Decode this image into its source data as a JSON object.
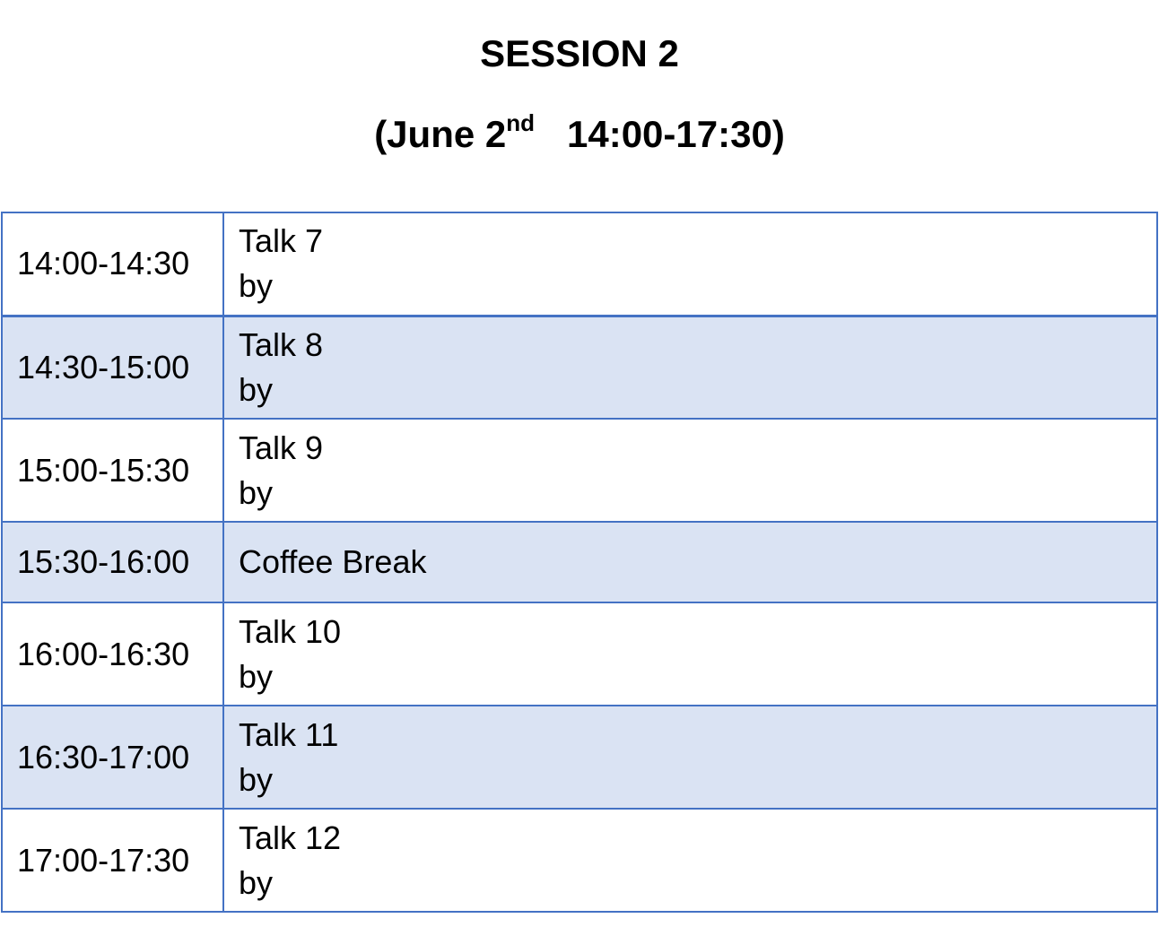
{
  "header": {
    "title": "SESSION 2",
    "subtitle_prefix": "(June 2",
    "subtitle_sup": "nd",
    "subtitle_time": "14:00-17:30)"
  },
  "schedule": {
    "rows": [
      {
        "time": "14:00-14:30",
        "title": "Talk 7",
        "by": "by"
      },
      {
        "time": "14:30-15:00",
        "title": "Talk 8",
        "by": "by"
      },
      {
        "time": "15:00-15:30",
        "title": "Talk 9",
        "by": "by"
      },
      {
        "time": "15:30-16:00",
        "title": "Coffee Break"
      },
      {
        "time": "16:00-16:30",
        "title": "Talk 10",
        "by": "by"
      },
      {
        "time": "16:30-17:00",
        "title": "Talk 11",
        "by": "by"
      },
      {
        "time": "17:00-17:30",
        "title": "Talk 12",
        "by": "by"
      }
    ]
  },
  "colors": {
    "border": "#4472c4",
    "shaded_row": "#dae3f3",
    "plain_row": "#ffffff"
  }
}
